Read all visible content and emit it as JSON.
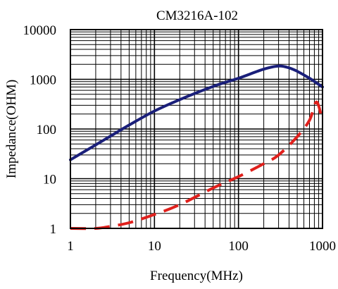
{
  "chart_data": {
    "type": "line",
    "title": "CM3216A-102",
    "xlabel": "Frequency(MHz)",
    "ylabel": "Impedance(OHM)",
    "xscale": "log",
    "yscale": "log",
    "xlim": [
      1,
      1000
    ],
    "ylim": [
      1,
      10000
    ],
    "x_ticks": [
      "1",
      "10",
      "100",
      "1000"
    ],
    "y_ticks": [
      "1",
      "10",
      "100",
      "1000",
      "10000"
    ],
    "grid": true,
    "legend": "none",
    "series": [
      {
        "style": "solid",
        "color": "#1a1f7a",
        "x": [
          1,
          2,
          3,
          5,
          10,
          20,
          50,
          100,
          200,
          300,
          400,
          500,
          700,
          1000
        ],
        "y": [
          24,
          48,
          72,
          120,
          230,
          390,
          720,
          1050,
          1600,
          1850,
          1700,
          1450,
          1050,
          700
        ]
      },
      {
        "style": "dashed",
        "color": "#e0201c",
        "x": [
          1,
          2,
          3,
          5,
          10,
          20,
          50,
          100,
          200,
          300,
          500,
          700,
          850,
          1000
        ],
        "y": [
          1,
          1,
          1.1,
          1.3,
          1.9,
          3,
          6.5,
          11,
          20,
          30,
          70,
          150,
          350,
          140
        ]
      }
    ]
  }
}
